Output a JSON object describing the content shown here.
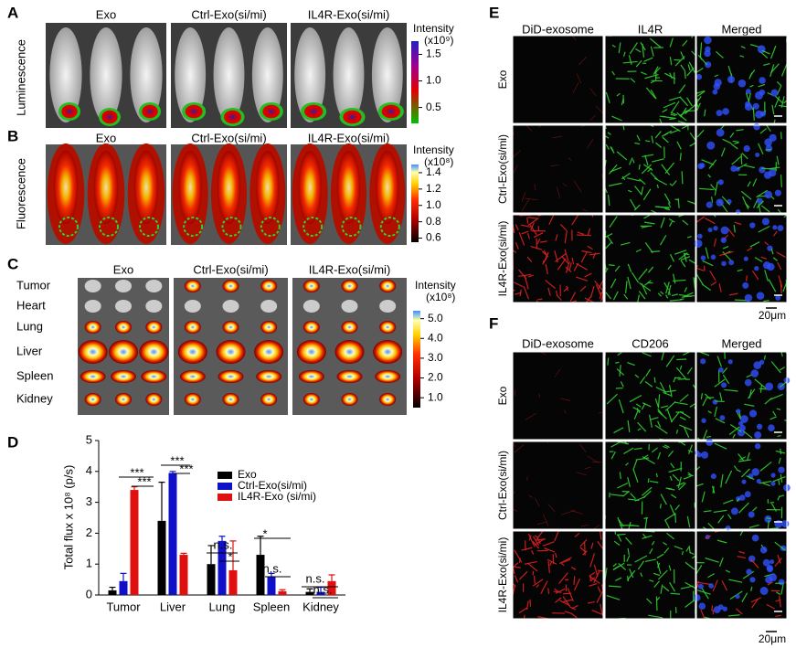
{
  "panel_labels": [
    "A",
    "B",
    "C",
    "D",
    "E",
    "F"
  ],
  "panel_a": {
    "side_label": "Luminescence",
    "groups": [
      "Exo",
      "Ctrl-Exo(si/mi)",
      "IL4R-Exo(si/mi)"
    ],
    "colorbar": {
      "title": "Intensity",
      "unit": "(x10⁹)",
      "lim": [
        0.2,
        1.75
      ],
      "ticks": [
        0.5,
        {
          "value": 1,
          "label": "1.0"
        },
        1.5
      ]
    }
  },
  "panel_b": {
    "side_label": "Fluorescence",
    "groups": [
      "Exo",
      "Ctrl-Exo(si/mi)",
      "IL4R-Exo(si/mi)"
    ],
    "colorbar": {
      "title": "Intensity",
      "unit": "(x10⁸)",
      "lim": [
        0.55,
        1.5
      ],
      "ticks": [
        0.6,
        0.8,
        {
          "value": 1,
          "label": "1.0"
        },
        1.2,
        1.4
      ]
    }
  },
  "panel_c": {
    "organs": [
      "Tumor",
      "Heart",
      "Lung",
      "Liver",
      "Spleen",
      "Kidney"
    ],
    "groups": [
      "Exo",
      "Ctrl-Exo(si/mi)",
      "IL4R-Exo(si/mi)"
    ],
    "colorbar": {
      "title": "Intensity",
      "unit": "(x10⁸)",
      "lim": [
        0.5,
        5.4
      ],
      "ticks": [
        {
          "value": 1,
          "label": "1.0"
        },
        {
          "value": 2,
          "label": "2.0"
        },
        {
          "value": 3,
          "label": "3.0"
        },
        {
          "value": 4,
          "label": "4.0"
        },
        {
          "value": 5,
          "label": "5.0"
        }
      ]
    }
  },
  "panel_e": {
    "columns": [
      "DiD-exosome",
      "IL4R",
      "Merged"
    ],
    "rows": [
      "Exo",
      "Ctrl-Exo(si/mi)",
      "IL4R-Exo(si/mi)"
    ],
    "scale_bar": "20μm"
  },
  "panel_f": {
    "columns": [
      "DiD-exosome",
      "CD206",
      "Merged"
    ],
    "rows": [
      "Exo",
      "Ctrl-Exo(si/mi)",
      "IL4R-Exo(si/mi)"
    ],
    "scale_bar": "20μm"
  },
  "chart_data": {
    "type": "bar",
    "ylabel": "Total flux x 10⁸ (p/s)",
    "categories": [
      "Tumor",
      "Liver",
      "Lung",
      "Spleen",
      "Kidney"
    ],
    "series": [
      {
        "name": "Exo",
        "color": "#000000",
        "values": [
          0.15,
          2.4,
          1.0,
          1.3,
          0.1
        ],
        "errors": [
          0.1,
          1.25,
          0.6,
          0.6,
          0.1
        ]
      },
      {
        "name": "Ctrl-Exo(si/mi)",
        "color": "#1010c8",
        "values": [
          0.45,
          3.95,
          1.75,
          0.6,
          0.1
        ],
        "errors": [
          0.25,
          0.05,
          0.15,
          0.1,
          0.15
        ]
      },
      {
        "name": "IL4R-Exo (si/mi)",
        "color": "#e01010",
        "values": [
          3.4,
          1.3,
          0.8,
          0.12,
          0.45
        ],
        "errors": [
          0.1,
          0.05,
          0.95,
          0.05,
          0.2
        ]
      }
    ],
    "ylim": [
      0,
      5
    ],
    "yticks": [
      0,
      1,
      2,
      3,
      4,
      5
    ],
    "annotations": [
      "***",
      "***",
      "***",
      "***",
      "n.s.",
      "*",
      "*",
      "n.s.",
      "n.s.",
      "n.s."
    ]
  }
}
